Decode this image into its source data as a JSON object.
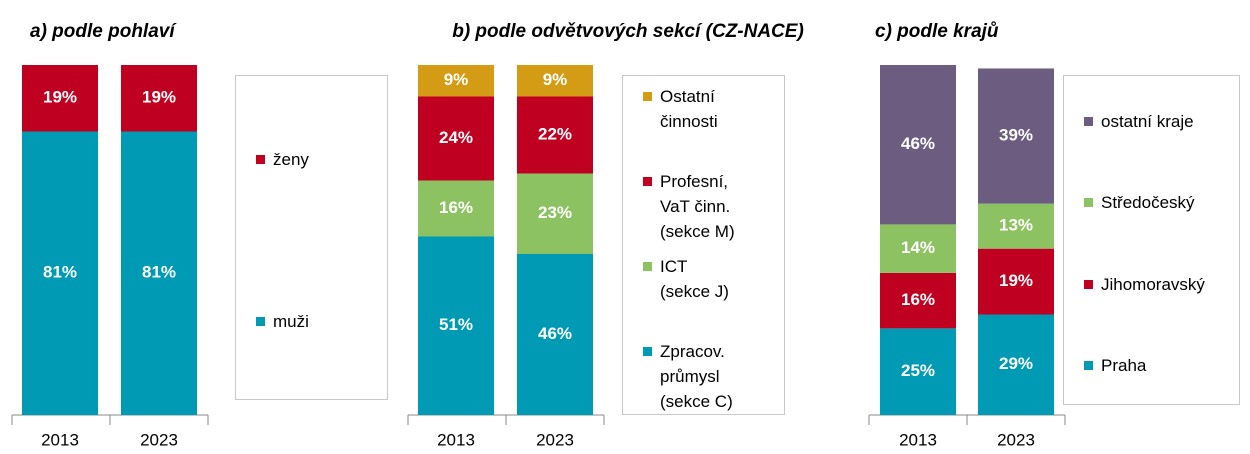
{
  "chart_data": [
    {
      "type": "stacked_bar",
      "title": "a) podle pohlaví",
      "categories": [
        "2013",
        "2023"
      ],
      "ylim": [
        0,
        100
      ],
      "series": [
        {
          "name": "muži",
          "color": "#009ab4",
          "values": [
            81,
            81
          ],
          "value_labels": [
            "81%",
            "81%"
          ]
        },
        {
          "name": "ženy",
          "color": "#c00020",
          "values": [
            19,
            19
          ],
          "value_labels": [
            "19%",
            "19%"
          ]
        }
      ]
    },
    {
      "type": "stacked_bar",
      "title": "b) podle odvětvových sekcí (CZ-NACE)",
      "categories": [
        "2013",
        "2023"
      ],
      "ylim": [
        0,
        100
      ],
      "series": [
        {
          "name": "Zpracov.\nprůmysl\n(sekce C)",
          "color": "#009ab4",
          "values": [
            51,
            46
          ],
          "value_labels": [
            "51%",
            "46%"
          ]
        },
        {
          "name": "ICT\n(sekce J)",
          "color": "#8dc263",
          "values": [
            16,
            23
          ],
          "value_labels": [
            "16%",
            "23%"
          ]
        },
        {
          "name": "Profesní,\nVaT činn.\n(sekce M)",
          "color": "#c00020",
          "values": [
            24,
            22
          ],
          "value_labels": [
            "24%",
            "22%"
          ]
        },
        {
          "name": "Ostatní\nčinnosti",
          "color": "#d49c14",
          "values": [
            9,
            9
          ],
          "value_labels": [
            "9%",
            "9%"
          ]
        }
      ]
    },
    {
      "type": "stacked_bar",
      "title": "c) podle krajů",
      "categories": [
        "2013",
        "2023"
      ],
      "ylim": [
        0,
        101
      ],
      "series": [
        {
          "name": "Praha",
          "color": "#009ab4",
          "values": [
            25,
            29
          ],
          "value_labels": [
            "25%",
            "29%"
          ]
        },
        {
          "name": "Jihomoravský",
          "color": "#c00020",
          "values": [
            16,
            19
          ],
          "value_labels": [
            "16%",
            "19%"
          ]
        },
        {
          "name": "Středočeský",
          "color": "#8dc263",
          "values": [
            14,
            13
          ],
          "value_labels": [
            "14%",
            "13%"
          ]
        },
        {
          "name": "ostatní kraje",
          "color": "#6b5c80",
          "values": [
            46,
            39
          ],
          "value_labels": [
            "46%",
            "39%"
          ]
        }
      ]
    }
  ]
}
